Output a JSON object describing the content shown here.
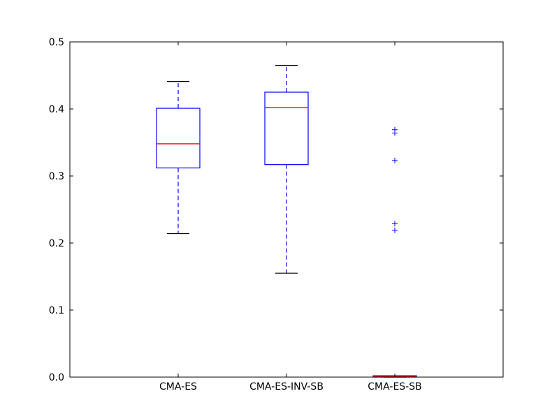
{
  "chart_data": {
    "type": "box",
    "title": "",
    "xlabel": "",
    "ylabel": "",
    "ylim": [
      0.0,
      0.5
    ],
    "yticks": [
      "0.0",
      "0.1",
      "0.2",
      "0.3",
      "0.4",
      "0.5"
    ],
    "grid": false,
    "categories": [
      "CMA-ES",
      "CMA-ES-INV-SB",
      "CMA-ES-SB"
    ],
    "boxes": [
      {
        "whisker_low": 0.214,
        "q1": 0.312,
        "median": 0.348,
        "q3": 0.401,
        "whisker_high": 0.441,
        "outliers": []
      },
      {
        "whisker_low": 0.155,
        "q1": 0.317,
        "median": 0.402,
        "q3": 0.425,
        "whisker_high": 0.465,
        "outliers": []
      },
      {
        "whisker_low": 0.0,
        "q1": 0.0,
        "median": 0.001,
        "q3": 0.002,
        "whisker_high": 0.002,
        "outliers": [
          0.369,
          0.364,
          0.323,
          0.229,
          0.219
        ]
      }
    ],
    "colors": {
      "box": "#0000ff",
      "median": "#ff0000",
      "whisker": "#0000ff",
      "cap": "#000000",
      "outlier": "#0000ff"
    }
  }
}
